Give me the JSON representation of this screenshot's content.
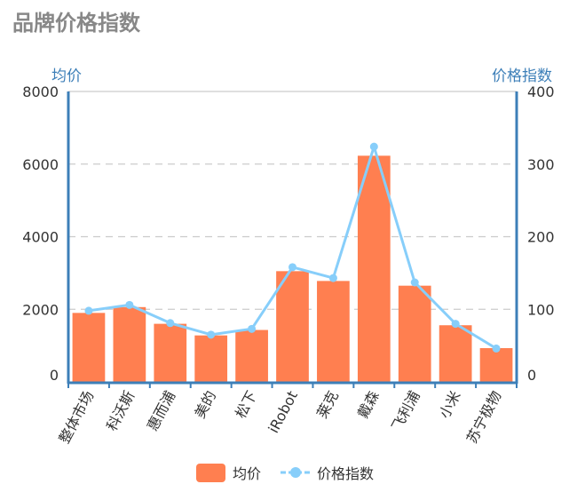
{
  "chart_data": {
    "type": "bar",
    "title": "品牌价格指数",
    "categories": [
      "整体市场",
      "科沃斯",
      "惠而浦",
      "美的",
      "松下",
      "iRobot",
      "莱克",
      "戴森",
      "飞利浦",
      "小米",
      "苏宁极物"
    ],
    "series": [
      {
        "name": "均价",
        "type": "bar",
        "axis": "left",
        "color": "#ff7f50",
        "values": [
          1900,
          2060,
          1600,
          1280,
          1430,
          3050,
          2780,
          6230,
          2650,
          1560,
          930
        ]
      },
      {
        "name": "价格指数",
        "type": "line",
        "axis": "right",
        "color": "#87cefa",
        "values": [
          98,
          106,
          81,
          65,
          73,
          158,
          143,
          324,
          137,
          80,
          46
        ]
      }
    ],
    "y_left": {
      "label": "均价",
      "ticks": [
        0,
        2000,
        4000,
        6000,
        8000
      ],
      "range": [
        0,
        8000
      ]
    },
    "y_right": {
      "label": "价格指数",
      "ticks": [
        0,
        100,
        200,
        300,
        400
      ],
      "range": [
        0,
        400
      ]
    },
    "grid": true,
    "legend_position": "bottom",
    "axis_color": "#3d7fb8",
    "grid_color": "#cccccc"
  }
}
